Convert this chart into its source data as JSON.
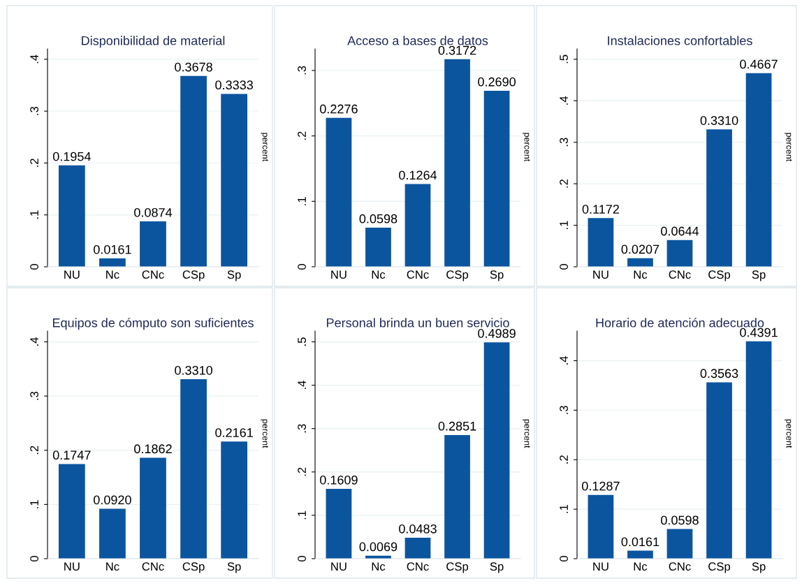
{
  "chart_data": [
    {
      "type": "bar",
      "title": "Disponibilidad de material",
      "ylabel": "percent",
      "categories": [
        "NU",
        "Nc",
        "CNc",
        "CSp",
        "Sp"
      ],
      "color": "#0b559f",
      "values": [
        0.1954,
        0.0161,
        0.0874,
        0.3678,
        0.3333
      ],
      "value_labels": [
        "0.1954",
        "0.0161",
        "0.0874",
        "0.3678",
        "0.3333"
      ],
      "ylim": [
        0,
        0.42
      ],
      "yticks": [
        {
          "value": 0,
          "label": "0"
        },
        {
          "value": 0.1,
          "label": ".1"
        },
        {
          "value": 0.2,
          "label": ".2"
        },
        {
          "value": 0.3,
          "label": ".3"
        },
        {
          "value": 0.4,
          "label": ".4"
        }
      ],
      "grid": "y"
    },
    {
      "type": "bar",
      "title": "Acceso a bases de datos",
      "ylabel": "percent",
      "categories": [
        "NU",
        "Nc",
        "CNc",
        "CSp",
        "Sp"
      ],
      "color": "#0b559f",
      "values": [
        0.2276,
        0.0598,
        0.1264,
        0.3172,
        0.269
      ],
      "value_labels": [
        "0.2276",
        "0.0598",
        "0.1264",
        "0.3172",
        "0.2690"
      ],
      "ylim": [
        0,
        0.333
      ],
      "yticks": [
        {
          "value": 0,
          "label": "0"
        },
        {
          "value": 0.1,
          "label": ".1"
        },
        {
          "value": 0.2,
          "label": ".2"
        },
        {
          "value": 0.3,
          "label": ".3"
        }
      ],
      "grid": "y"
    },
    {
      "type": "bar",
      "title": "Instalaciones confortables",
      "ylabel": "percent",
      "categories": [
        "NU",
        "Nc",
        "CNc",
        "CSp",
        "Sp"
      ],
      "color": "#0b559f",
      "values": [
        0.1172,
        0.0207,
        0.0644,
        0.331,
        0.4667
      ],
      "value_labels": [
        "0.1172",
        "0.0207",
        "0.0644",
        "0.3310",
        "0.4667"
      ],
      "ylim": [
        0,
        0.525
      ],
      "yticks": [
        {
          "value": 0,
          "label": "0"
        },
        {
          "value": 0.1,
          "label": ".1"
        },
        {
          "value": 0.2,
          "label": ".2"
        },
        {
          "value": 0.3,
          "label": ".3"
        },
        {
          "value": 0.4,
          "label": ".4"
        },
        {
          "value": 0.5,
          "label": ".5"
        }
      ],
      "grid": "y"
    },
    {
      "type": "bar",
      "title": "Equipos de cómputo son suficientes",
      "ylabel": "percent",
      "categories": [
        "NU",
        "Nc",
        "CNc",
        "CSp",
        "Sp"
      ],
      "color": "#0b559f",
      "values": [
        0.1747,
        0.092,
        0.1862,
        0.331,
        0.2161
      ],
      "value_labels": [
        "0.1747",
        "0.0920",
        "0.1862",
        "0.3310",
        "0.2161"
      ],
      "ylim": [
        0,
        0.42
      ],
      "yticks": [
        {
          "value": 0,
          "label": "0"
        },
        {
          "value": 0.1,
          "label": ".1"
        },
        {
          "value": 0.2,
          "label": ".2"
        },
        {
          "value": 0.3,
          "label": ".3"
        },
        {
          "value": 0.4,
          "label": ".4"
        }
      ],
      "grid": "y"
    },
    {
      "type": "bar",
      "title": "Personal brinda un buen servicio",
      "ylabel": "percent",
      "categories": [
        "NU",
        "Nc",
        "CNc",
        "CSp",
        "Sp"
      ],
      "color": "#0b559f",
      "values": [
        0.1609,
        0.0069,
        0.0483,
        0.2851,
        0.4989
      ],
      "value_labels": [
        "0.1609",
        "0.0069",
        "0.0483",
        "0.2851",
        "0.4989"
      ],
      "ylim": [
        0,
        0.525
      ],
      "yticks": [
        {
          "value": 0,
          "label": "0"
        },
        {
          "value": 0.1,
          "label": ".1"
        },
        {
          "value": 0.2,
          "label": ".2"
        },
        {
          "value": 0.3,
          "label": ".3"
        },
        {
          "value": 0.4,
          "label": ".4"
        },
        {
          "value": 0.5,
          "label": ".5"
        }
      ],
      "grid": "y"
    },
    {
      "type": "bar",
      "title": "Horario de atención adecuado",
      "ylabel": "percent",
      "categories": [
        "NU",
        "Nc",
        "CNc",
        "CSp",
        "Sp"
      ],
      "color": "#0b559f",
      "values": [
        0.1287,
        0.0161,
        0.0598,
        0.3563,
        0.4391
      ],
      "value_labels": [
        "0.1287",
        "0.0161",
        "0.0598",
        "0.3563",
        "0.4391"
      ],
      "ylim": [
        0,
        0.46
      ],
      "yticks": [
        {
          "value": 0,
          "label": "0"
        },
        {
          "value": 0.1,
          "label": ".1"
        },
        {
          "value": 0.2,
          "label": ".2"
        },
        {
          "value": 0.3,
          "label": ".3"
        },
        {
          "value": 0.4,
          "label": ".4"
        }
      ],
      "grid": "y"
    }
  ]
}
